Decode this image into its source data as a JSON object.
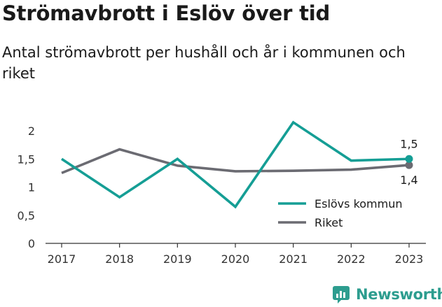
{
  "chart_data": {
    "type": "line",
    "title": "Strömavbrott i Eslöv över tid",
    "subtitle": "Antal strömavbrott per hushåll och år i kommunen och riket",
    "categories": [
      "2017",
      "2018",
      "2019",
      "2020",
      "2021",
      "2022",
      "2023"
    ],
    "y_ticks": [
      {
        "value": 0,
        "label": "0"
      },
      {
        "value": 0.5,
        "label": "0,5"
      },
      {
        "value": 1,
        "label": "1"
      },
      {
        "value": 1.5,
        "label": "1,5"
      },
      {
        "value": 2,
        "label": "2"
      }
    ],
    "ylim": [
      0,
      2.2
    ],
    "grid": false,
    "legend_position": "bottom-right",
    "series": [
      {
        "name": "Eslövs kommun",
        "color": "#159e95",
        "values": [
          1.5,
          0.82,
          1.5,
          0.65,
          2.15,
          1.47,
          1.5
        ],
        "end_label": "1,5"
      },
      {
        "name": "Riket",
        "color": "#6b6b72",
        "values": [
          1.25,
          1.67,
          1.38,
          1.28,
          1.29,
          1.31,
          1.39
        ],
        "end_label": "1,4"
      }
    ]
  },
  "brand": {
    "name": "Newsworthy",
    "logo_color": "#2d9d8f",
    "logo_icon": "bar-chart-icon"
  }
}
